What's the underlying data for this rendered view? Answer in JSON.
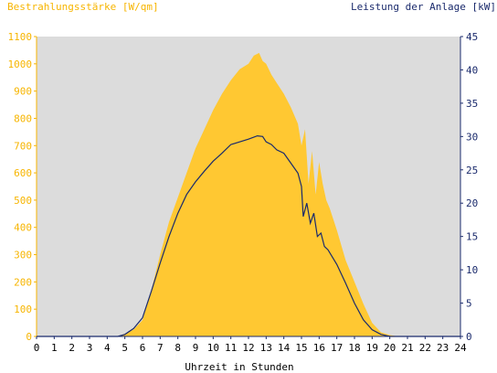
{
  "colors": {
    "plot_background": "#dcdcdc",
    "irradiance_fill": "#ffc832",
    "power_line": "#1a2a6c",
    "left_axis_text": "#f7b500",
    "right_axis_text": "#1a2a6c",
    "x_axis_text": "#000000"
  },
  "chart_data": {
    "type": "area",
    "left_axis_title": "Bestrahlungsstärke [W/qm]",
    "right_axis_title": "Leistung der Anlage [kW]",
    "xlabel": "Uhrzeit in Stunden",
    "xlim": [
      0,
      24
    ],
    "ylim_left": [
      0,
      1100
    ],
    "ylim_right": [
      0,
      45
    ],
    "x_ticks": [
      "0",
      "1",
      "2",
      "3",
      "4",
      "5",
      "6",
      "7",
      "8",
      "9",
      "10",
      "11",
      "12",
      "13",
      "14",
      "15",
      "16",
      "17",
      "18",
      "19",
      "20",
      "21",
      "22",
      "23",
      "24"
    ],
    "left_ticks": [
      "0",
      "100",
      "200",
      "300",
      "400",
      "500",
      "600",
      "700",
      "800",
      "900",
      "1000",
      "1100"
    ],
    "right_ticks": [
      "0",
      "5",
      "10",
      "15",
      "20",
      "25",
      "30",
      "35",
      "40",
      "45"
    ],
    "series": [
      {
        "axis": "left",
        "style": "area",
        "x": [
          0,
          4.6,
          5.0,
          5.5,
          6.0,
          6.5,
          7.0,
          7.5,
          8.0,
          8.5,
          9.0,
          9.5,
          10.0,
          10.5,
          11.0,
          11.5,
          12.0,
          12.3,
          12.6,
          12.8,
          13.0,
          13.3,
          13.6,
          14.0,
          14.4,
          14.8,
          15.0,
          15.2,
          15.4,
          15.6,
          15.8,
          16.0,
          16.2,
          16.4,
          16.6,
          16.8,
          17.0,
          17.5,
          18.0,
          18.5,
          19.0,
          19.5,
          20.0,
          20.5,
          24
        ],
        "values": [
          0,
          0,
          10,
          25,
          60,
          170,
          300,
          420,
          510,
          600,
          690,
          760,
          830,
          890,
          940,
          980,
          1000,
          1030,
          1040,
          1010,
          1000,
          960,
          930,
          890,
          840,
          780,
          700,
          760,
          560,
          680,
          520,
          640,
          560,
          500,
          470,
          430,
          390,
          280,
          200,
          120,
          50,
          15,
          5,
          0,
          0
        ]
      },
      {
        "axis": "right",
        "style": "line",
        "x": [
          0,
          4.6,
          5.0,
          5.5,
          6.0,
          6.5,
          7.0,
          7.5,
          8.0,
          8.5,
          9.0,
          9.5,
          10.0,
          10.5,
          11.0,
          11.5,
          12.0,
          12.5,
          12.8,
          13.0,
          13.3,
          13.6,
          14.0,
          14.4,
          14.8,
          15.0,
          15.1,
          15.3,
          15.5,
          15.7,
          15.9,
          16.1,
          16.3,
          16.5,
          17.0,
          17.5,
          18.0,
          18.5,
          19.0,
          19.5,
          20.0,
          24
        ],
        "values": [
          0,
          0,
          0.3,
          1.2,
          2.8,
          6.8,
          11.0,
          15.0,
          18.5,
          21.3,
          23.2,
          24.8,
          26.3,
          27.5,
          28.8,
          29.2,
          29.6,
          30.1,
          30.0,
          29.2,
          28.8,
          28.0,
          27.5,
          26.0,
          24.5,
          22.5,
          18.0,
          20.0,
          17.0,
          18.5,
          15.0,
          15.5,
          13.5,
          13.0,
          10.8,
          8.0,
          5.0,
          2.5,
          1.0,
          0.3,
          0,
          0
        ]
      }
    ]
  }
}
